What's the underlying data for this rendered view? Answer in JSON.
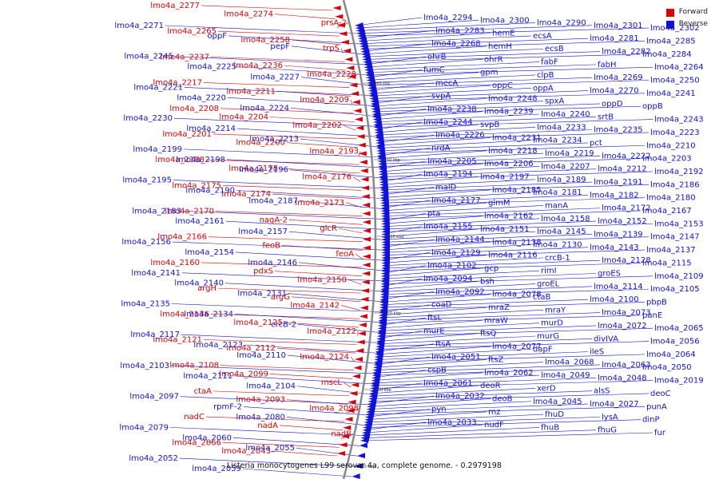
{
  "legend": {
    "forward_label": "Forward",
    "reverse_label": "Reverse",
    "forward_color": "#dd0000",
    "reverse_color": "#1111dd"
  },
  "caption": "Listeria monocytogenes L99 serovar 4a, complete genome. - 0.2979198",
  "colors": {
    "forward": "#dd0000",
    "reverse": "#1111dd",
    "backbone": "#888888"
  },
  "axis_ticks": [
    "2300 kbp",
    "2250 kbp",
    "2200 kbp",
    "2150 kbp",
    "2100 kbp",
    "2050 kbp"
  ],
  "forward_labels": [
    "lmo4a_2277",
    "lmo4a_2274",
    "prsA-2",
    "lmo4a_2265",
    "lmo4a_2258",
    "trpS",
    "lmo4a_2237",
    "lmo4a_2236",
    "lmo4a_2228",
    "lmo4a_2217",
    "lmo4a_2211",
    "lmo4a_2209",
    "lmo4a_2208",
    "lmo4a_2204",
    "lmo4a_2202",
    "lmo4a_2201",
    "lmo4a_2200",
    "lmo4a_2193",
    "lmo4a_2188",
    "lmo4a_2178",
    "lmo4a_2176",
    "lmo4a_2175",
    "lmo4a_2174",
    "lmo4a_2173",
    "lmo4a_2170",
    "nagA-2",
    "glcR",
    "lmo4a_2166",
    "feoB",
    "feoA",
    "lmo4a_2160",
    "pdxS",
    "lmo4a_2150",
    "argH",
    "argG",
    "lmo4a_2142",
    "lmo4a_2136",
    "lmo4a_2125",
    "lmo4a_2122",
    "lmo4a_2121",
    "lmo4a_2112",
    "lmo4a_2124",
    "lmo4a_2108",
    "lmo4a_2099",
    "mscL",
    "ctaA",
    "lmo4a_2093",
    "lmo4a_2098",
    "nadC",
    "nadA",
    "nadB",
    "lmo4a_2066",
    "lmo4a_2043"
  ],
  "left_reverse_labels": [
    "lmo4a_2271",
    "oppF",
    "pepF",
    "lmo4a_2245",
    "lmo4a_2225",
    "lmo4a_2227",
    "lmo4a_2221",
    "lmo4a_2220",
    "lmo4a_2224",
    "lmo4a_2230",
    "lmo4a_2214",
    "lmo4a_2213",
    "lmo4a_2199",
    "lmo4a_2198",
    "lmo4a_2196",
    "lmo4a_2195",
    "lmo4a_2190",
    "lmo4a_2187",
    "lmo4a_2183",
    "lmo4a_2161",
    "lmo4a_2157",
    "lmo4a_2156",
    "lmo4a_2154",
    "lmo4a_2146",
    "lmo4a_2141",
    "lmo4a_2140",
    "lmo4a_2131",
    "lmo4a_2135",
    "lmo4a_2134",
    "crcB-2",
    "lmo4a_2117",
    "lmo4a_2123",
    "lmo4a_2110",
    "lmo4a_2103",
    "lmo4a_2111",
    "lmo4a_2104",
    "lmo4a_2097",
    "rpmF-2",
    "lmo4a_2080",
    "lmo4a_2079",
    "lmo4a_2060",
    "lmo4a_2055",
    "lmo4a_2052",
    "lmo4a_2059"
  ],
  "right_reverse_labels": [
    "lmo4a_2294",
    "lmo4a_2300",
    "lmo4a_2290",
    "lmo4a_2301",
    "lmo4a_2302",
    "lmo4a_2283",
    "hemE",
    "ecsA",
    "lmo4a_2281",
    "lmo4a_2285",
    "lmo4a_2268",
    "hemH",
    "ecsB",
    "lmo4a_2282",
    "lmo4a_2284",
    "ohrB",
    "ohrR",
    "fabF",
    "fabH",
    "lmo4a_2264",
    "fumC",
    "gpm",
    "clpB",
    "lmo4a_2269",
    "lmo4a_2250",
    "mecA",
    "oppC",
    "oppA",
    "lmo4a_2270",
    "lmo4a_2241",
    "svpA",
    "lmo4a_2248",
    "spxA",
    "oppD",
    "oppB",
    "lmo4a_2238",
    "lmo4a_2239",
    "lmo4a_2240",
    "srtB",
    "lmo4a_2243",
    "lmo4a_2244",
    "svpB",
    "lmo4a_2233",
    "lmo4a_2235",
    "lmo4a_2223",
    "lmo4a_2226",
    "lmo4a_2231",
    "lmo4a_2234",
    "pct",
    "lmo4a_2210",
    "nrdA",
    "lmo4a_2218",
    "lmo4a_2219",
    "lmo4a_2222",
    "lmo4a_2203",
    "lmo4a_2205",
    "lmo4a_2206",
    "lmo4a_2207",
    "lmo4a_2212",
    "lmo4a_2192",
    "lmo4a_2194",
    "lmo4a_2197",
    "lmo4a_2189",
    "lmo4a_2191",
    "lmo4a_2186",
    "malD",
    "lmo4a_2185",
    "lmo4a_2181",
    "lmo4a_2182",
    "lmo4a_2180",
    "lmo4a_2177",
    "glmM",
    "manA",
    "lmo4a_2172",
    "lmo4a_2167",
    "pta",
    "lmo4a_2162",
    "lmo4a_2158",
    "lmo4a_2152",
    "lmo4a_2153",
    "lmo4a_2155",
    "lmo4a_2151",
    "lmo4a_2145",
    "lmo4a_2139",
    "lmo4a_2147",
    "lmo4a_2144",
    "lmo4a_2138",
    "lmo4a_2130",
    "lmo4a_2143",
    "lmo4a_2137",
    "lmo4a_2129",
    "lmo4a_2116",
    "crcB-1",
    "lmo4a_2128",
    "lmo4a_2115",
    "lmo4a_2102",
    "gcp",
    "rimI",
    "groES",
    "lmo4a_2109",
    "lmo4a_2094",
    "bsh",
    "groEL",
    "lmo4a_2114",
    "lmo4a_2105",
    "lmo4a_2092",
    "lmo4a_2078",
    "ctaB",
    "lmo4a_2100",
    "pbpB",
    "coaD",
    "mraZ",
    "mraY",
    "lmo4a_2073",
    "panE",
    "ftsL",
    "mraW",
    "murD",
    "lmo4a_2072",
    "lmo4a_2065",
    "murE",
    "ftsQ",
    "murG",
    "divIVA",
    "lmo4a_2056",
    "ftsA",
    "lmo4a_2077",
    "dapF",
    "ileS",
    "lmo4a_2064",
    "lmo4a_2051",
    "ftsZ",
    "lmo4a_2068",
    "lmo4a_2063",
    "lmo4a_2050",
    "cspB",
    "lmo4a_2062",
    "lmo4a_2049",
    "lmo4a_2048",
    "lmo4a_2019",
    "lmo4a_2061",
    "deoR",
    "xerD",
    "alsS",
    "deoC",
    "lmo4a_2032",
    "deoB",
    "lmo4a_2045",
    "lmo4a_2027",
    "punA",
    "pyn",
    "rnz",
    "fhuD",
    "lysA",
    "dinP",
    "lmo4a_2033",
    "nudF",
    "fhuB",
    "fhuG",
    "fur"
  ]
}
